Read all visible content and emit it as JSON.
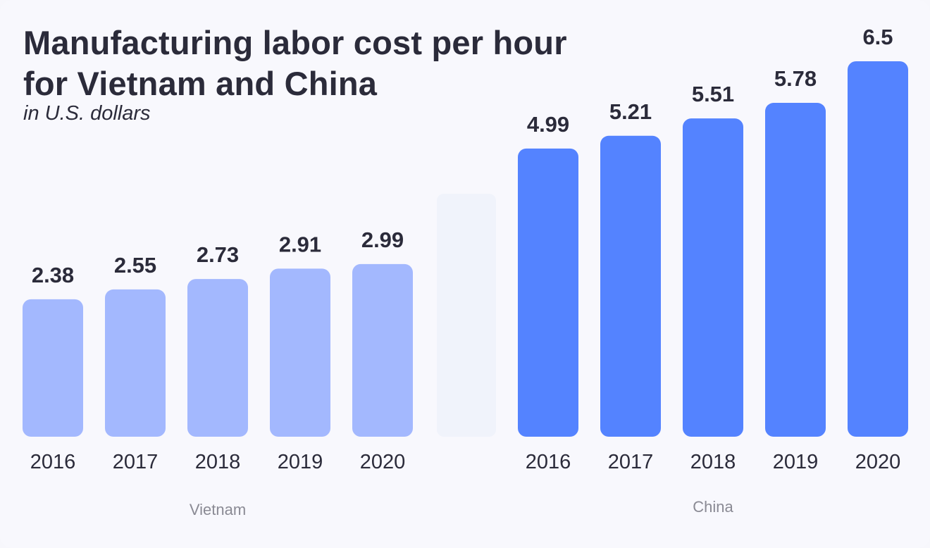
{
  "title": "Manufacturing labor cost per hour for Vietnam and China",
  "subtitle": "in U.S. dollars",
  "colors": {
    "vietnam": "#a3b8fe",
    "china": "#5483ff",
    "text": "#2b2b3a",
    "muted": "#8a8a94"
  },
  "chart_data": {
    "type": "bar",
    "title": "Manufacturing labor cost per hour for Vietnam and China",
    "subtitle": "in U.S. dollars",
    "groups": [
      {
        "name": "Vietnam",
        "categories": [
          "2016",
          "2017",
          "2018",
          "2019",
          "2020"
        ],
        "values": [
          2.38,
          2.55,
          2.73,
          2.91,
          2.99
        ],
        "labels": [
          "2.38",
          "2.55",
          "2.73",
          "2.91",
          "2.99"
        ]
      },
      {
        "name": "China",
        "categories": [
          "2016",
          "2017",
          "2018",
          "2019",
          "2020"
        ],
        "values": [
          4.99,
          5.21,
          5.51,
          5.78,
          6.5
        ],
        "labels": [
          "4.99",
          "5.21",
          "5.51",
          "5.78",
          "6.5"
        ]
      }
    ],
    "grid": false,
    "legend": "none"
  }
}
